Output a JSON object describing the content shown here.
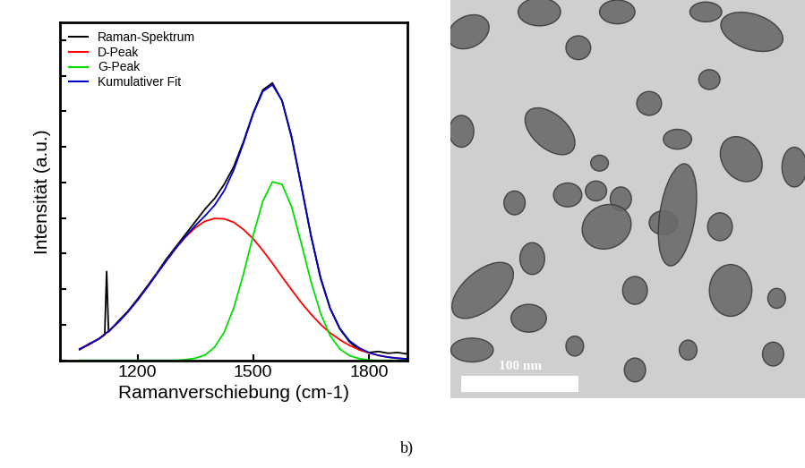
{
  "chart_data": {
    "type": "line",
    "x_label": "Ramanverschiebung (cm-1)",
    "y_label": "Intensität (a.u.)",
    "xlim": [
      1000,
      1900
    ],
    "xticks": [
      1200,
      1500,
      1800
    ],
    "ylim": [
      0,
      9.5
    ],
    "yticks": [
      0,
      1,
      2,
      3,
      4,
      5,
      6,
      7,
      8,
      9
    ],
    "tick_labels": "x",
    "legend": "upper left",
    "series": [
      {
        "name": "Raman-Spektrum",
        "color": "#000000",
        "x": [
          1050,
          1075,
          1100,
          1115,
          1120,
          1125,
          1150,
          1175,
          1200,
          1225,
          1250,
          1275,
          1300,
          1325,
          1350,
          1375,
          1400,
          1425,
          1450,
          1475,
          1500,
          1525,
          1550,
          1575,
          1600,
          1625,
          1650,
          1675,
          1700,
          1725,
          1750,
          1775,
          1800,
          1825,
          1850,
          1875,
          1900
        ],
        "values": [
          0.3,
          0.47,
          0.6,
          0.72,
          2.5,
          0.8,
          1.1,
          1.38,
          1.72,
          2.08,
          2.45,
          2.85,
          3.2,
          3.55,
          3.9,
          4.25,
          4.55,
          4.95,
          5.45,
          6.15,
          6.95,
          7.6,
          7.8,
          7.3,
          6.25,
          4.9,
          3.5,
          2.3,
          1.45,
          0.88,
          0.52,
          0.3,
          0.22,
          0.25,
          0.2,
          0.22,
          0.18
        ]
      },
      {
        "name": "D-Peak",
        "color": "#ff0000",
        "x": [
          1050,
          1075,
          1100,
          1125,
          1150,
          1175,
          1200,
          1225,
          1250,
          1275,
          1300,
          1325,
          1350,
          1375,
          1400,
          1425,
          1450,
          1475,
          1500,
          1525,
          1550,
          1575,
          1600,
          1625,
          1650,
          1675,
          1700,
          1725,
          1750,
          1775,
          1800,
          1825,
          1850,
          1875,
          1900
        ],
        "values": [
          0.32,
          0.45,
          0.61,
          0.82,
          1.07,
          1.36,
          1.69,
          2.05,
          2.43,
          2.8,
          3.16,
          3.47,
          3.73,
          3.91,
          3.99,
          3.98,
          3.88,
          3.68,
          3.42,
          3.09,
          2.73,
          2.35,
          1.98,
          1.62,
          1.3,
          1.01,
          0.77,
          0.58,
          0.42,
          0.3,
          0.21,
          0.14,
          0.09,
          0.06,
          0.04
        ]
      },
      {
        "name": "G-Peak",
        "color": "#00e000",
        "x": [
          1050,
          1075,
          1100,
          1125,
          1150,
          1175,
          1200,
          1225,
          1250,
          1275,
          1300,
          1325,
          1350,
          1375,
          1400,
          1425,
          1450,
          1475,
          1500,
          1525,
          1550,
          1575,
          1600,
          1625,
          1650,
          1675,
          1700,
          1725,
          1750,
          1775,
          1800,
          1825,
          1850,
          1875,
          1900
        ],
        "values": [
          0,
          0,
          0,
          0,
          0,
          0,
          0,
          0,
          0,
          0,
          0,
          0.02,
          0.06,
          0.15,
          0.37,
          0.79,
          1.48,
          2.43,
          3.51,
          4.47,
          5.02,
          4.95,
          4.31,
          3.29,
          2.22,
          1.32,
          0.69,
          0.32,
          0.13,
          0.05,
          0.01,
          0,
          0,
          0,
          0
        ]
      },
      {
        "name": "Kumulativer Fit",
        "color": "#0000cc",
        "x": [
          1050,
          1075,
          1100,
          1125,
          1150,
          1175,
          1200,
          1225,
          1250,
          1275,
          1300,
          1325,
          1350,
          1375,
          1400,
          1425,
          1450,
          1475,
          1500,
          1525,
          1550,
          1575,
          1600,
          1625,
          1650,
          1675,
          1700,
          1725,
          1750,
          1775,
          1800,
          1825,
          1850,
          1875,
          1900
        ],
        "values": [
          0.32,
          0.45,
          0.61,
          0.82,
          1.07,
          1.36,
          1.69,
          2.05,
          2.43,
          2.8,
          3.16,
          3.49,
          3.79,
          4.06,
          4.36,
          4.77,
          5.36,
          6.11,
          6.93,
          7.56,
          7.75,
          7.3,
          6.29,
          4.91,
          3.52,
          2.33,
          1.46,
          0.9,
          0.55,
          0.35,
          0.22,
          0.14,
          0.09,
          0.06,
          0.04
        ]
      }
    ]
  },
  "image": {
    "scale_bar": "100 nm"
  },
  "panel_label": "b)"
}
